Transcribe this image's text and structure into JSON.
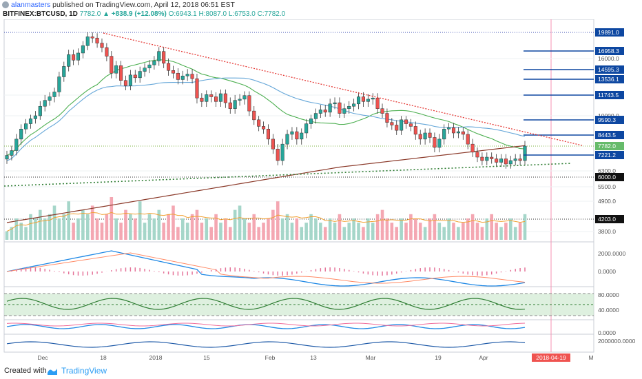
{
  "header": {
    "author": "alanmasters",
    "published_text": "published on TradingView.com, April 12, 2018 06:51 EST",
    "symbol": "BITFINEX:BTCUSD, 1D",
    "last": "7782.0",
    "change": "▲ +838.9 (+12.08%)",
    "ohlc": "O:6943.1 H:8087.0 L:6753.0 C:7782.0"
  },
  "footer": {
    "created_with": "Created with",
    "brand": "TradingView"
  },
  "colors": {
    "up": "#26a69a",
    "down": "#ef5350",
    "ma_short": "#4caf50",
    "ma_long": "#8b3a2a",
    "ma_mid": "#64a6d8",
    "level_line": "#0d47a1",
    "trend_red": "#e53935",
    "trend_green": "#2e7d32"
  },
  "chart_data": {
    "type": "candlestick",
    "price_axis": {
      "ticks": [
        "16000.0",
        "12000.0",
        "10000.0",
        "6300.0",
        "5500.0",
        "4900.0",
        "3800.0"
      ],
      "labels": [
        {
          "text": "19891.0",
          "kind": "level"
        },
        {
          "text": "16958.3",
          "kind": "level"
        },
        {
          "text": "14595.3",
          "kind": "level"
        },
        {
          "text": "13536.1",
          "kind": "level"
        },
        {
          "text": "11743.5",
          "kind": "level"
        },
        {
          "text": "9590.3",
          "kind": "level"
        },
        {
          "text": "8443.5",
          "kind": "level"
        },
        {
          "text": "7782.0",
          "kind": "last"
        },
        {
          "text": "7221.2",
          "kind": "level"
        },
        {
          "text": "6000.0",
          "kind": "level"
        },
        {
          "text": "4203.0",
          "kind": "level"
        }
      ]
    },
    "macd_axis": [
      "2000.0000",
      "0.0000"
    ],
    "rsi_axis": [
      "80.0000",
      "40.0000"
    ],
    "stoch_axis": [
      "0.0000"
    ],
    "obv_axis": [
      "2000000.0000"
    ],
    "x_axis": [
      "Dec",
      "18",
      "2018",
      "15",
      "Feb",
      "13",
      "Mar",
      "19",
      "Apr",
      "M"
    ],
    "x_marker": "2018-04-19",
    "closes": [
      7200,
      7500,
      8200,
      8900,
      9300,
      9700,
      10000,
      10800,
      11300,
      11600,
      12100,
      13800,
      15000,
      16500,
      15800,
      16700,
      17800,
      19200,
      19000,
      18200,
      17500,
      16300,
      14200,
      15100,
      13400,
      12800,
      14000,
      13700,
      14400,
      14800,
      15200,
      15700,
      16900,
      15400,
      14500,
      14200,
      13500,
      13900,
      14100,
      13600,
      11500,
      11200,
      11800,
      11600,
      11200,
      11900,
      11100,
      10600,
      11300,
      11400,
      11700,
      10400,
      9600,
      9100,
      8900,
      8200,
      7600,
      6900,
      7900,
      8500,
      8700,
      8200,
      8600,
      9300,
      9700,
      10200,
      10500,
      10300,
      11000,
      11100,
      10200,
      10600,
      10800,
      11000,
      11600,
      11200,
      11400,
      11500,
      10600,
      10200,
      9400,
      9200,
      8800,
      9600,
      9300,
      9100,
      8500,
      8200,
      8600,
      8300,
      7700,
      8200,
      8900,
      9000,
      8600,
      8700,
      8500,
      7900,
      7400,
      7100,
      6900,
      7100,
      7000,
      6800,
      7000,
      6700,
      6900,
      7000,
      6900,
      7782
    ],
    "volume": [
      2,
      3,
      5,
      4,
      3,
      6,
      5,
      7,
      5,
      6,
      8,
      5,
      6,
      9,
      4,
      5,
      7,
      6,
      8,
      5,
      4,
      6,
      10,
      5,
      4,
      7,
      6,
      5,
      9,
      4,
      6,
      5,
      7,
      4,
      6,
      8,
      3,
      5,
      4,
      6,
      7,
      4,
      5,
      3,
      6,
      4,
      5,
      3,
      7,
      8,
      5,
      4,
      6,
      3,
      4,
      5,
      7,
      9,
      5,
      6,
      4,
      5,
      3,
      4,
      6,
      5,
      4,
      3,
      5,
      4,
      6,
      3,
      4,
      5,
      4,
      3,
      5,
      4,
      6,
      7,
      5,
      4,
      3,
      5,
      4,
      6,
      5,
      4,
      3,
      5,
      6,
      4,
      3,
      5,
      4,
      3,
      4,
      5,
      6,
      4,
      3,
      5,
      6,
      4,
      3,
      4,
      5,
      3,
      4,
      6
    ]
  }
}
